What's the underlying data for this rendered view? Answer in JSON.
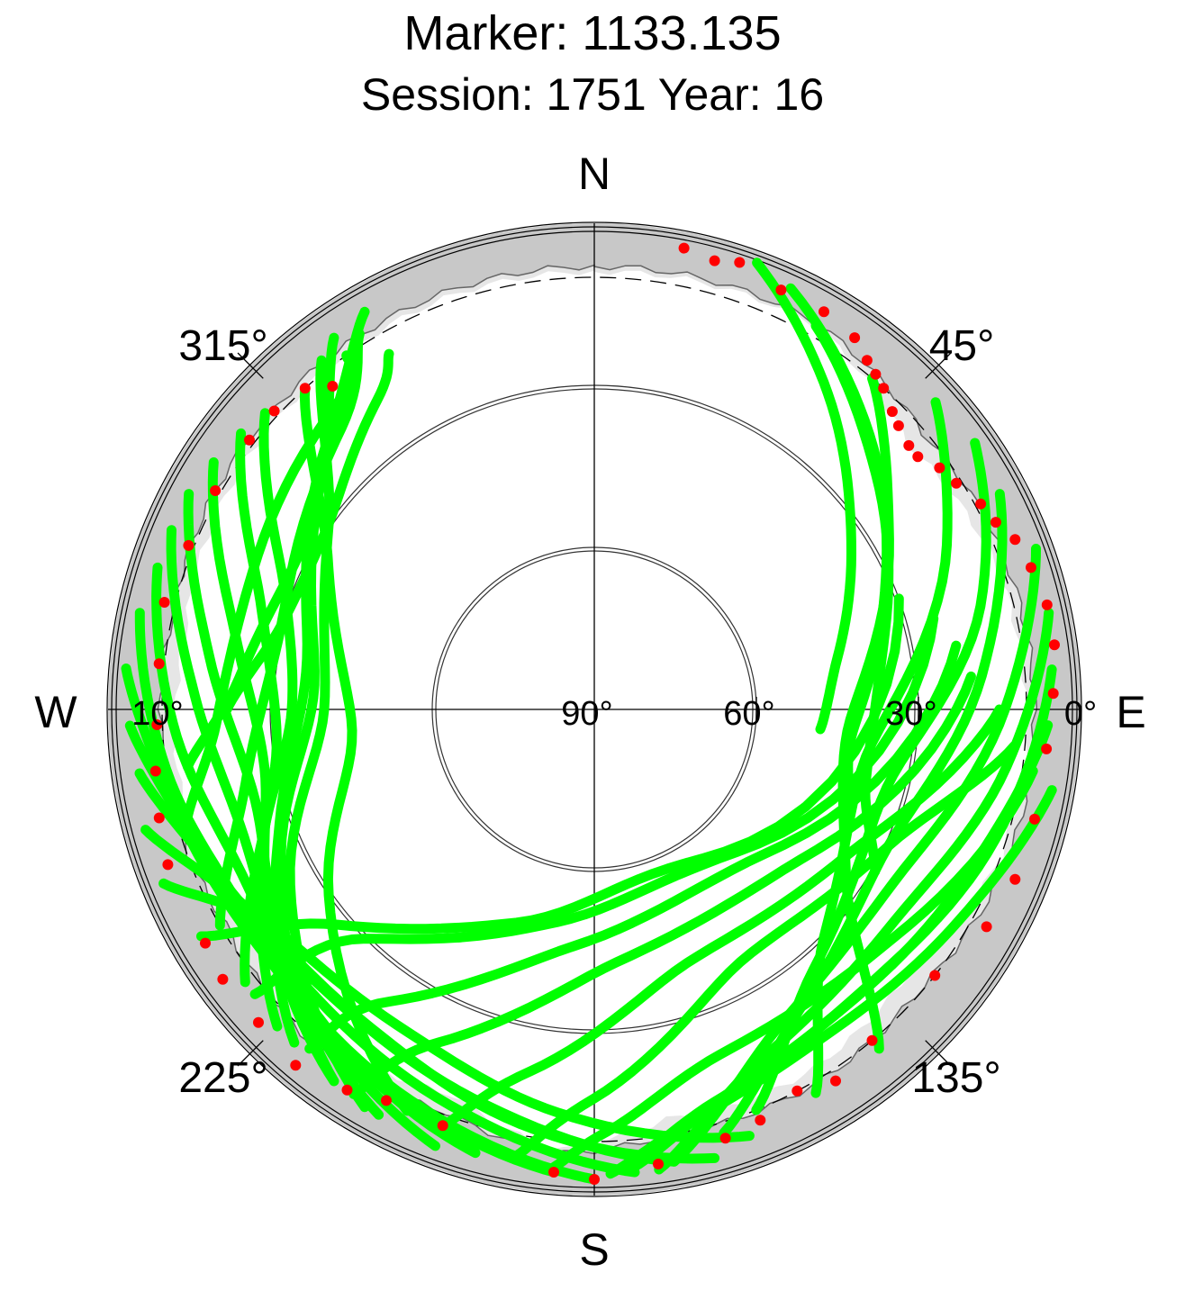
{
  "chart_data": {
    "type": "scatter",
    "title": "Marker: 1133.135",
    "subtitle": "Session: 1751 Year: 16",
    "projection": "polar-sky",
    "radial_axis": "elevation",
    "elevation_range": [
      0,
      90
    ],
    "elevation_tick_labels": [
      "0°",
      "10°",
      "30°",
      "60°",
      "90°"
    ],
    "elevation_rings": [
      0,
      10,
      30,
      60
    ],
    "azimuth_tick_labels": [
      "45°",
      "135°",
      "225°",
      "315°"
    ],
    "cardinal_labels": {
      "north": "N",
      "south": "S",
      "east": "E",
      "west": "W"
    },
    "colors": {
      "tracked": "#00ff00",
      "edge": "#ff0000",
      "horizon_mask": "#c8c8c8",
      "horizon_band": "#e6e6e6"
    },
    "tracks": [
      {
        "az": [
          20,
          35,
          55,
          78,
          95
        ],
        "el": [
          2,
          16,
          32,
          44,
          48
        ]
      },
      {
        "az": [
          25,
          45,
          70,
          95,
          110
        ],
        "el": [
          4,
          18,
          33,
          42,
          40
        ]
      },
      {
        "az": [
          30,
          50,
          80,
          105,
          120
        ],
        "el": [
          8,
          22,
          36,
          38,
          30
        ]
      },
      {
        "az": [
          40,
          60,
          95,
          125,
          140
        ],
        "el": [
          10,
          27,
          43,
          33,
          8
        ]
      },
      {
        "az": [
          48,
          65,
          100,
          135,
          150
        ],
        "el": [
          5,
          18,
          39,
          30,
          8
        ]
      },
      {
        "az": [
          55,
          75,
          105,
          140,
          158
        ],
        "el": [
          4,
          16,
          34,
          27,
          10
        ]
      },
      {
        "az": [
          62,
          85,
          115,
          145,
          163
        ],
        "el": [
          5,
          18,
          30,
          23,
          8
        ]
      },
      {
        "az": [
          70,
          90,
          120,
          150,
          170
        ],
        "el": [
          3,
          14,
          26,
          22,
          5
        ]
      },
      {
        "az": [
          78,
          98,
          125,
          155,
          172
        ],
        "el": [
          4,
          13,
          22,
          18,
          4
        ]
      },
      {
        "az": [
          85,
          108,
          135,
          160,
          175
        ],
        "el": [
          5,
          12,
          18,
          15,
          5
        ]
      },
      {
        "az": [
          92,
          112,
          140,
          163,
          175
        ],
        "el": [
          6,
          14,
          18,
          14,
          6
        ]
      },
      {
        "az": [
          100,
          120,
          145,
          166,
          178
        ],
        "el": [
          4,
          12,
          16,
          12,
          4
        ]
      },
      {
        "az": [
          98,
          130,
          160,
          178,
          185
        ],
        "el": [
          8,
          21,
          22,
          12,
          5
        ]
      },
      {
        "az": [
          95,
          115,
          150,
          180,
          190
        ],
        "el": [
          12,
          30,
          36,
          18,
          6
        ]
      },
      {
        "az": [
          90,
          120,
          160,
          190,
          200
        ],
        "el": [
          15,
          36,
          40,
          22,
          8
        ]
      },
      {
        "az": [
          85,
          130,
          175,
          205,
          212
        ],
        "el": [
          20,
          44,
          43,
          22,
          6
        ]
      },
      {
        "az": [
          80,
          135,
          185,
          215,
          220
        ],
        "el": [
          22,
          50,
          46,
          24,
          8
        ]
      },
      {
        "az": [
          75,
          140,
          190,
          225,
          230
        ],
        "el": [
          25,
          54,
          50,
          30,
          8
        ]
      },
      {
        "az": [
          70,
          150,
          200,
          230,
          240
        ],
        "el": [
          30,
          57,
          48,
          28,
          6
        ]
      },
      {
        "az": [
          160,
          185,
          210,
          236,
          248
        ],
        "el": [
          6,
          15,
          21,
          18,
          4
        ]
      },
      {
        "az": [
          165,
          190,
          215,
          240,
          255
        ],
        "el": [
          4,
          12,
          18,
          16,
          4
        ]
      },
      {
        "az": [
          170,
          195,
          222,
          246,
          262
        ],
        "el": [
          5,
          14,
          18,
          14,
          5
        ]
      },
      {
        "az": [
          175,
          200,
          228,
          252,
          268
        ],
        "el": [
          4,
          12,
          16,
          12,
          4
        ]
      },
      {
        "az": [
          180,
          205,
          232,
          258,
          275
        ],
        "el": [
          3,
          10,
          14,
          10,
          3
        ]
      },
      {
        "az": [
          185,
          212,
          240,
          262,
          282
        ],
        "el": [
          4,
          11,
          15,
          10,
          4
        ]
      },
      {
        "az": [
          195,
          220,
          245,
          268,
          288
        ],
        "el": [
          5,
          13,
          18,
          12,
          5
        ]
      },
      {
        "az": [
          200,
          225,
          250,
          272,
          293
        ],
        "el": [
          4,
          14,
          21,
          16,
          5
        ]
      },
      {
        "az": [
          208,
          232,
          255,
          278,
          298
        ],
        "el": [
          5,
          17,
          25,
          18,
          5
        ]
      },
      {
        "az": [
          215,
          238,
          260,
          282,
          303
        ],
        "el": [
          6,
          19,
          28,
          22,
          6
        ]
      },
      {
        "az": [
          225,
          245,
          265,
          288,
          308
        ],
        "el": [
          7,
          22,
          31,
          25,
          7
        ]
      },
      {
        "az": [
          232,
          250,
          270,
          292,
          312
        ],
        "el": [
          8,
          25,
          34,
          28,
          8
        ]
      },
      {
        "az": [
          205,
          235,
          265,
          300,
          318
        ],
        "el": [
          8,
          30,
          45,
          33,
          10
        ]
      },
      {
        "az": [
          210,
          240,
          270,
          305,
          322
        ],
        "el": [
          5,
          25,
          40,
          30,
          8
        ]
      },
      {
        "az": [
          215,
          245,
          275,
          310,
          325
        ],
        "el": [
          6,
          26,
          38,
          24,
          6
        ]
      },
      {
        "az": [
          222,
          250,
          280,
          315,
          330
        ],
        "el": [
          7,
          28,
          36,
          20,
          5
        ]
      },
      {
        "az": [
          240,
          258,
          285,
          318,
          328
        ],
        "el": [
          10,
          24,
          30,
          20,
          8
        ]
      },
      {
        "az": [
          255,
          268,
          290,
          320,
          326
        ],
        "el": [
          12,
          20,
          22,
          16,
          10
        ]
      },
      {
        "az": [
          262,
          275,
          300,
          322,
          325
        ],
        "el": [
          14,
          24,
          28,
          16,
          10
        ]
      },
      {
        "az": [
          270,
          285,
          305,
          325,
          330
        ],
        "el": [
          22,
          30,
          30,
          20,
          14
        ]
      }
    ],
    "edge_points": [
      {
        "az": 11,
        "el": 3
      },
      {
        "az": 15,
        "el": 4
      },
      {
        "az": 18,
        "el": 3
      },
      {
        "az": 24,
        "el": 5
      },
      {
        "az": 30,
        "el": 5
      },
      {
        "az": 35,
        "el": 6
      },
      {
        "az": 38,
        "el": 8
      },
      {
        "az": 40,
        "el": 9
      },
      {
        "az": 42,
        "el": 10
      },
      {
        "az": 45,
        "el": 12
      },
      {
        "az": 47,
        "el": 13
      },
      {
        "az": 50,
        "el": 14
      },
      {
        "az": 52,
        "el": 14
      },
      {
        "az": 55,
        "el": 12
      },
      {
        "az": 58,
        "el": 11
      },
      {
        "az": 62,
        "el": 9
      },
      {
        "az": 65,
        "el": 8
      },
      {
        "az": 68,
        "el": 6
      },
      {
        "az": 72,
        "el": 5
      },
      {
        "az": 77,
        "el": 4
      },
      {
        "az": 82,
        "el": 4
      },
      {
        "az": 88,
        "el": 5
      },
      {
        "az": 95,
        "el": 6
      },
      {
        "az": 104,
        "el": 6
      },
      {
        "az": 112,
        "el": 6
      },
      {
        "az": 119,
        "el": 7
      },
      {
        "az": 128,
        "el": 10
      },
      {
        "az": 140,
        "el": 10
      },
      {
        "az": 147,
        "el": 8
      },
      {
        "az": 152,
        "el": 10
      },
      {
        "az": 158,
        "el": 8
      },
      {
        "az": 163,
        "el": 7
      },
      {
        "az": 172,
        "el": 5
      },
      {
        "az": 180,
        "el": 3
      },
      {
        "az": 185,
        "el": 4
      },
      {
        "az": 200,
        "el": 8
      },
      {
        "az": 208,
        "el": 8
      },
      {
        "az": 213,
        "el": 6
      },
      {
        "az": 220,
        "el": 4
      },
      {
        "az": 227,
        "el": 5
      },
      {
        "az": 234,
        "el": 5
      },
      {
        "az": 239,
        "el": 6
      },
      {
        "az": 250,
        "el": 6
      },
      {
        "az": 256,
        "el": 7
      },
      {
        "az": 262,
        "el": 8
      },
      {
        "az": 268,
        "el": 9
      },
      {
        "az": 276,
        "el": 9
      },
      {
        "az": 284,
        "el": 8
      },
      {
        "az": 292,
        "el": 9
      },
      {
        "az": 300,
        "el": 9
      },
      {
        "az": 308,
        "el": 9
      },
      {
        "az": 313,
        "el": 9
      },
      {
        "az": 318,
        "el": 10
      },
      {
        "az": 321,
        "el": 13
      }
    ],
    "horizon_mask_elevation": [
      {
        "az": 0,
        "el": 2
      },
      {
        "az": 30,
        "el": 1
      },
      {
        "az": 50,
        "el": 7
      },
      {
        "az": 70,
        "el": 4
      },
      {
        "az": 90,
        "el": 3
      },
      {
        "az": 110,
        "el": 3
      },
      {
        "az": 130,
        "el": 7
      },
      {
        "az": 150,
        "el": 5
      },
      {
        "az": 170,
        "el": 6
      },
      {
        "az": 185,
        "el": 1
      },
      {
        "az": 200,
        "el": 7
      },
      {
        "az": 220,
        "el": 4
      },
      {
        "az": 240,
        "el": 8
      },
      {
        "az": 260,
        "el": 5
      },
      {
        "az": 280,
        "el": 6
      },
      {
        "az": 300,
        "el": 4
      },
      {
        "az": 320,
        "el": 3
      },
      {
        "az": 340,
        "el": 2
      },
      {
        "az": 360,
        "el": 2
      }
    ]
  }
}
